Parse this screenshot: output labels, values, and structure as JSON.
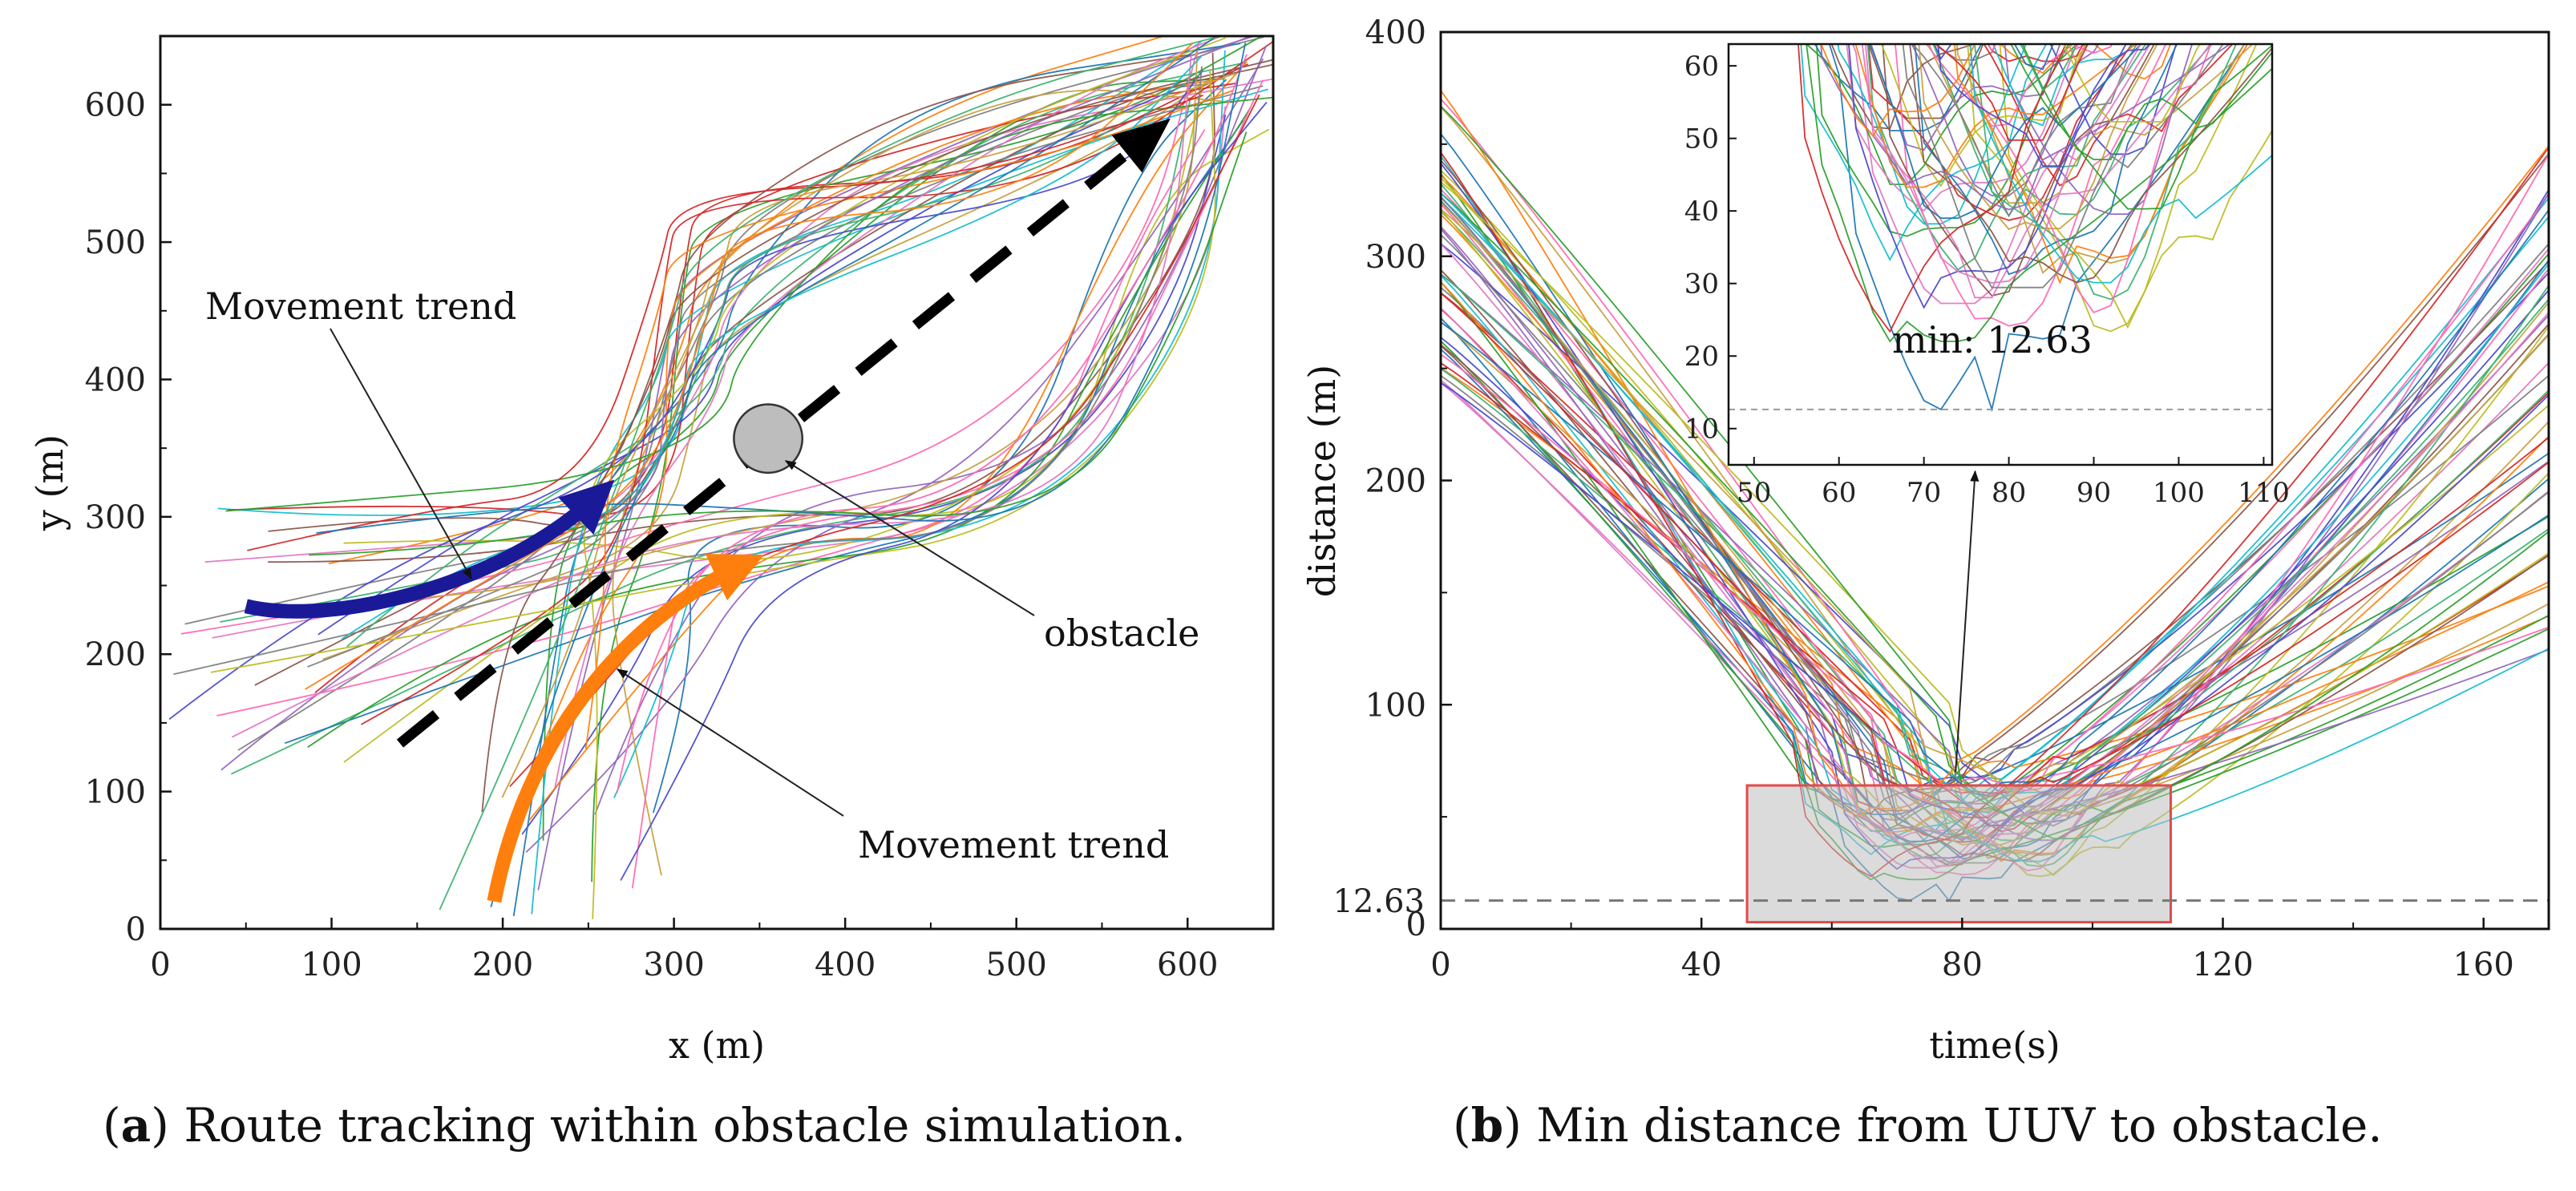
{
  "captions": {
    "a_letter": "a",
    "a_text": "Route tracking within obstacle simulation.",
    "b_letter": "b",
    "b_text": "Min distance from UUV to obstacle."
  },
  "chart_data": [
    {
      "id": "a",
      "type": "line",
      "title": "",
      "xlabel": "x (m)",
      "ylabel": "y (m)",
      "xlim": [
        0,
        650
      ],
      "ylim": [
        0,
        650
      ],
      "xticks": [
        0,
        100,
        200,
        300,
        400,
        500,
        600
      ],
      "yticks": [
        0,
        100,
        200,
        300,
        400,
        500,
        600
      ],
      "trajectory_count": 60,
      "planned_route": {
        "style": "dashed",
        "color": "#000000",
        "x": [
          140,
          590
        ],
        "y": [
          135,
          590
        ]
      },
      "obstacle": {
        "label": "obstacle",
        "x": 355,
        "y": 357,
        "radius": 20,
        "color": "#bdbdbd"
      },
      "annotations": [
        {
          "text": "Movement trend",
          "arrow_color": "#1a1a99",
          "arrow_x": [
            50,
            100,
            200,
            255
          ],
          "arrow_y": [
            235,
            220,
            250,
            315
          ]
        },
        {
          "text": "Movement trend",
          "arrow_color": "#ff7f0e",
          "arrow_x": [
            195,
            215,
            280,
            340
          ],
          "arrow_y": [
            20,
            150,
            230,
            265
          ]
        }
      ],
      "series_colors": [
        "#1f77b4",
        "#ff7f0e",
        "#2ca02c",
        "#d62728",
        "#9467bd",
        "#8c564b",
        "#e377c2",
        "#7f7f7f",
        "#bcbd22",
        "#17becf",
        "#4b4bcf",
        "#c7a040",
        "#3cb371",
        "#ff69b4"
      ]
    },
    {
      "id": "b",
      "type": "line",
      "title": "",
      "xlabel": "time(s)",
      "ylabel": "distance (m)",
      "xlim": [
        0,
        170
      ],
      "ylim": [
        0,
        400
      ],
      "xticks": [
        0,
        40,
        80,
        120,
        160
      ],
      "yticks": [
        0,
        100,
        200,
        300,
        400
      ],
      "extra_ytick": {
        "value": 12.63,
        "label": "12.63"
      },
      "trajectory_count": 60,
      "min_distance": 12.63,
      "min_time": 78,
      "highlight_box": {
        "x": [
          47,
          112
        ],
        "y": [
          3,
          64
        ]
      },
      "inset": {
        "xlim": [
          47,
          111
        ],
        "ylim": [
          5,
          63
        ],
        "xticks": [
          50,
          60,
          70,
          80,
          90,
          100,
          110
        ],
        "yticks": [
          10,
          20,
          30,
          40,
          50,
          60
        ],
        "annotation": "min: 12.63"
      }
    }
  ]
}
